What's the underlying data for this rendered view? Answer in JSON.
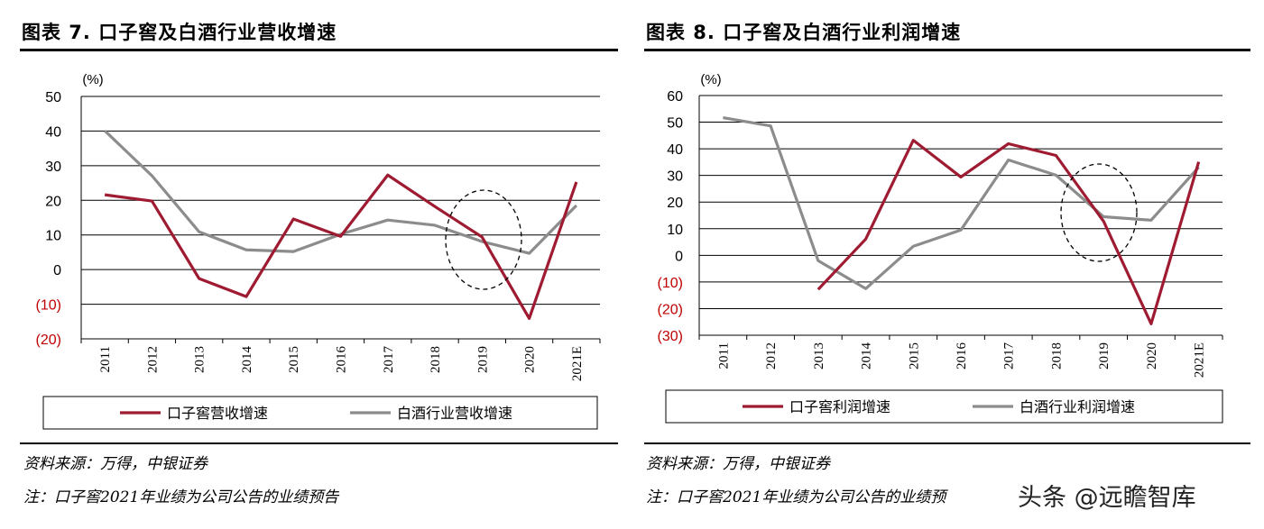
{
  "charts_meta": {
    "line_colors": {
      "company": "#9e1b32",
      "industry": "#8c8c8c"
    },
    "negative_tick_color": "#c00000"
  },
  "chart_data": [
    {
      "type": "line",
      "title": "图表 7. 口子窖及白酒行业营收增速",
      "ylabel": "(%)",
      "categories": [
        "2011",
        "2012",
        "2013",
        "2014",
        "2015",
        "2016",
        "2017",
        "2018",
        "2019",
        "2020",
        "2021E"
      ],
      "ylim": [
        -20,
        50
      ],
      "yticks": [
        50,
        40,
        30,
        20,
        10,
        0,
        -10,
        -20
      ],
      "ytick_labels": [
        "50",
        "40",
        "30",
        "20",
        "10",
        "0",
        "(10)",
        "(20)"
      ],
      "grid": true,
      "legend_placement": "bottom",
      "series": [
        {
          "name": "口子窖营收增速",
          "color": "#9e1b32",
          "values": [
            21.6,
            19.8,
            -2.6,
            -7.8,
            14.6,
            9.6,
            27.3,
            18.2,
            9.4,
            -14.1,
            25.3
          ]
        },
        {
          "name": "白酒行业营收增速",
          "color": "#8c8c8c",
          "values": [
            40.1,
            27.1,
            10.9,
            5.7,
            5.2,
            10.2,
            14.3,
            12.8,
            8.1,
            4.7,
            18.5
          ]
        }
      ],
      "annotation": "dashed ellipse around 2019"
    },
    {
      "type": "line",
      "title": "图表 8. 口子窖及白酒行业利润增速",
      "ylabel": "(%)",
      "categories": [
        "2011",
        "2012",
        "2013",
        "2014",
        "2015",
        "2016",
        "2017",
        "2018",
        "2019",
        "2020",
        "2021E"
      ],
      "ylim": [
        -30,
        60
      ],
      "yticks": [
        60,
        50,
        40,
        30,
        20,
        10,
        0,
        -10,
        -20,
        -30
      ],
      "ytick_labels": [
        "60",
        "50",
        "40",
        "30",
        "20",
        "10",
        "0",
        "(10)",
        "(20)",
        "(30)"
      ],
      "grid": true,
      "legend_placement": "bottom",
      "series": [
        {
          "name": "口子窖利润增速",
          "color": "#9e1b32",
          "values": [
            null,
            null,
            -12.8,
            6.1,
            43.2,
            29.4,
            41.9,
            37.5,
            12.8,
            -25.7,
            35.1
          ]
        },
        {
          "name": "白酒行业利润增速",
          "color": "#8c8c8c",
          "values": [
            51.7,
            48.6,
            -2.0,
            -12.5,
            3.4,
            9.5,
            35.8,
            30.1,
            14.5,
            13.2,
            33.1
          ]
        }
      ],
      "annotation": "dashed ellipse around 2019"
    }
  ],
  "footer": {
    "source": "资料来源：万得，中银证券",
    "note": "注：口子窖2021年业绩为公司公告的业绩预告",
    "note_truncated": "注：口子窖2021年业绩为公司公告的业绩预"
  },
  "watermark": "头条 @远瞻智库"
}
